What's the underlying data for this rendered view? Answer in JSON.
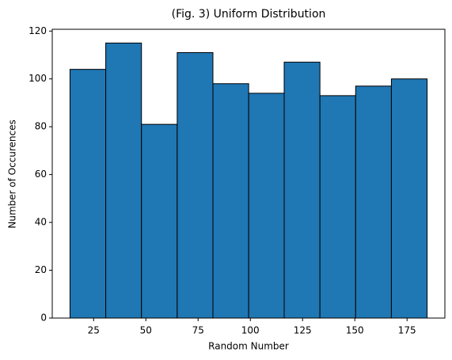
{
  "chart_data": {
    "type": "histogram",
    "title": "(Fig. 3) Uniform Distribution",
    "x_label": "Random Number",
    "y_label": "Number of Occurences",
    "bins": [
      13.7,
      30.8,
      47.9,
      65.0,
      82.1,
      99.2,
      116.2,
      133.3,
      150.4,
      167.5,
      184.6
    ],
    "values": [
      104,
      115,
      81,
      111,
      98,
      94,
      107,
      93,
      97,
      100
    ],
    "color": "#1f77b4",
    "edgecolor": "#000000",
    "xlim": [
      5.2,
      193.1
    ],
    "xticks": [
      25,
      50,
      75,
      100,
      125,
      150,
      175
    ],
    "ylim": [
      0,
      120.75
    ],
    "yticks": [
      0,
      20,
      40,
      60,
      80,
      100,
      120
    ]
  }
}
